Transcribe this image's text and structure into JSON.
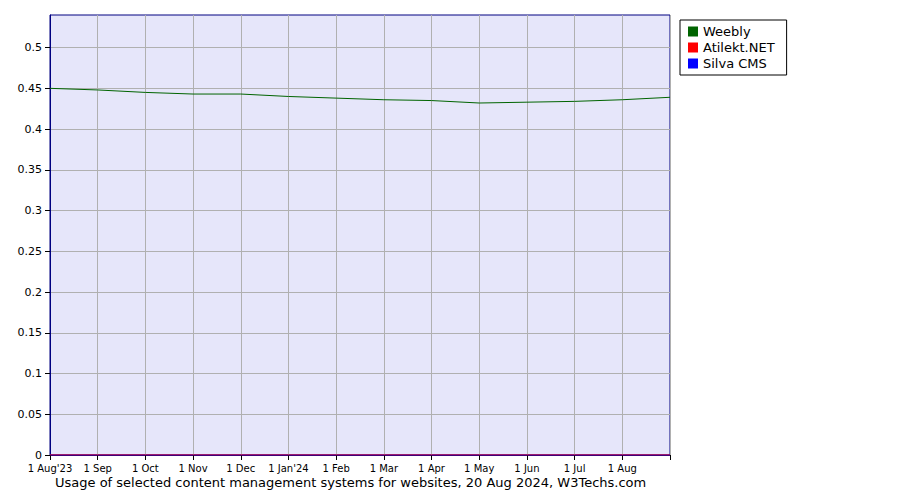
{
  "chart_data": {
    "type": "line",
    "title": "Usage of selected content management systems for websites, 20 Aug 2024, W3Techs.com",
    "categories": [
      "1 Aug'23",
      "1 Sep",
      "1 Oct",
      "1 Nov",
      "1 Dec",
      "1 Jan'24",
      "1 Feb",
      "1 Mar",
      "1 Apr",
      "1 May",
      "1 Jun",
      "1 Jul",
      "1 Aug",
      null
    ],
    "series": [
      {
        "name": "Weebly",
        "color": "#006400",
        "values": [
          0.45,
          0.448,
          0.445,
          0.443,
          0.443,
          0.44,
          0.438,
          0.436,
          0.435,
          0.432,
          0.433,
          0.434,
          0.436,
          0.439
        ]
      },
      {
        "name": "Atilekt.NET",
        "color": "#ff0000",
        "values": [
          0,
          0,
          0,
          0,
          0,
          0,
          0,
          0,
          0,
          0,
          0,
          0,
          0,
          0
        ]
      },
      {
        "name": "Silva CMS",
        "color": "#0000ff",
        "values": [
          0,
          0,
          0,
          0,
          0,
          0,
          0,
          0,
          0,
          0,
          0,
          0,
          0,
          0
        ]
      }
    ],
    "ylim": [
      0,
      0.54
    ],
    "yticks": [
      0,
      0.05,
      0.1,
      0.15,
      0.2,
      0.25,
      0.3,
      0.35,
      0.4,
      0.45,
      0.5
    ],
    "grid": true,
    "legend": "top-right"
  }
}
